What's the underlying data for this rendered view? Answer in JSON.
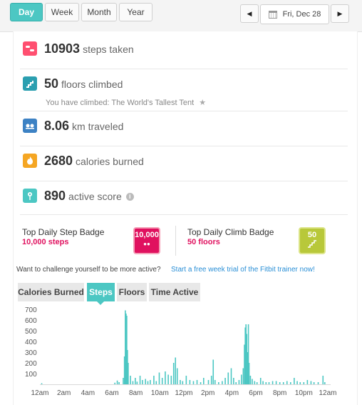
{
  "periods": {
    "day": "Day",
    "week": "Week",
    "month": "Month",
    "year": "Year"
  },
  "date_label": "Fri, Dec 28",
  "stats": {
    "steps": {
      "value": "10903",
      "unit": "steps taken"
    },
    "floors": {
      "value": "50",
      "unit": "floors climbed",
      "sub": "You have climbed: The World's Tallest Tent"
    },
    "distance": {
      "value": "8.06",
      "unit": "km traveled"
    },
    "calories": {
      "value": "2680",
      "unit": "calories burned"
    },
    "active": {
      "value": "890",
      "unit": "active score"
    }
  },
  "badges": {
    "step": {
      "title": "Top Daily Step Badge",
      "value": "10,000 steps",
      "badge_text": "10,000"
    },
    "climb": {
      "title": "Top Daily Climb Badge",
      "value": "50 floors",
      "badge_text": "50"
    }
  },
  "challenge": {
    "text": "Want to challenge yourself to be more active?",
    "link": "Start a free week trial of the Fitbit trainer now!"
  },
  "chart_tabs": {
    "calories": "Calories Burned",
    "steps": "Steps",
    "floors": "Floors",
    "time_active": "Time Active"
  },
  "colors": {
    "accent": "#4cc7c3",
    "steps_icon": "#ff4f70",
    "floors_icon": "#2b9fb0",
    "distance_icon": "#3d82c4",
    "calories_icon": "#f5a623",
    "active_icon": "#4cc7c3",
    "badge_pink": "#e0115f",
    "badge_green": "#b8c83a",
    "link": "#2a8fd6"
  },
  "chart_data": {
    "type": "bar",
    "title": "",
    "xlabel": "",
    "ylabel": "",
    "ylim": [
      0,
      700
    ],
    "yticks": [
      100,
      200,
      300,
      400,
      500,
      600,
      700
    ],
    "xticks": [
      "12am",
      "2am",
      "4am",
      "6am",
      "8am",
      "10am",
      "12pm",
      "2pm",
      "4pm",
      "6pm",
      "8pm",
      "10pm",
      "12am"
    ],
    "x_range_hours": [
      0,
      24
    ],
    "series": [
      {
        "values": [
          [
            0.15,
            10
          ],
          [
            6.25,
            15
          ],
          [
            6.45,
            35
          ],
          [
            6.6,
            20
          ],
          [
            6.95,
            60
          ],
          [
            7.05,
            260
          ],
          [
            7.12,
            690
          ],
          [
            7.18,
            660
          ],
          [
            7.24,
            640
          ],
          [
            7.3,
            320
          ],
          [
            7.36,
            200
          ],
          [
            7.55,
            80
          ],
          [
            7.75,
            30
          ],
          [
            7.95,
            60
          ],
          [
            8.1,
            25
          ],
          [
            8.35,
            80
          ],
          [
            8.55,
            40
          ],
          [
            8.8,
            50
          ],
          [
            9.0,
            30
          ],
          [
            9.2,
            40
          ],
          [
            9.5,
            80
          ],
          [
            9.7,
            30
          ],
          [
            9.95,
            110
          ],
          [
            10.2,
            60
          ],
          [
            10.45,
            120
          ],
          [
            10.7,
            90
          ],
          [
            10.95,
            80
          ],
          [
            11.15,
            200
          ],
          [
            11.3,
            250
          ],
          [
            11.45,
            150
          ],
          [
            11.7,
            40
          ],
          [
            11.9,
            30
          ],
          [
            12.2,
            80
          ],
          [
            12.5,
            40
          ],
          [
            12.8,
            30
          ],
          [
            13.1,
            40
          ],
          [
            13.4,
            20
          ],
          [
            13.65,
            60
          ],
          [
            14.05,
            40
          ],
          [
            14.3,
            80
          ],
          [
            14.45,
            230
          ],
          [
            14.6,
            40
          ],
          [
            14.9,
            20
          ],
          [
            15.2,
            30
          ],
          [
            15.45,
            60
          ],
          [
            15.7,
            110
          ],
          [
            15.95,
            150
          ],
          [
            16.15,
            60
          ],
          [
            16.35,
            20
          ],
          [
            16.6,
            40
          ],
          [
            16.8,
            90
          ],
          [
            16.95,
            150
          ],
          [
            17.05,
            370
          ],
          [
            17.12,
            530
          ],
          [
            17.18,
            560
          ],
          [
            17.24,
            470
          ],
          [
            17.3,
            300
          ],
          [
            17.38,
            560
          ],
          [
            17.44,
            200
          ],
          [
            17.55,
            80
          ],
          [
            17.7,
            50
          ],
          [
            17.9,
            30
          ],
          [
            18.1,
            20
          ],
          [
            18.4,
            60
          ],
          [
            18.6,
            30
          ],
          [
            18.85,
            20
          ],
          [
            19.1,
            20
          ],
          [
            19.4,
            30
          ],
          [
            19.7,
            30
          ],
          [
            20.0,
            20
          ],
          [
            20.3,
            20
          ],
          [
            20.6,
            30
          ],
          [
            20.9,
            20
          ],
          [
            21.2,
            60
          ],
          [
            21.45,
            30
          ],
          [
            21.7,
            20
          ],
          [
            22.0,
            20
          ],
          [
            22.3,
            40
          ],
          [
            22.6,
            30
          ],
          [
            22.85,
            20
          ],
          [
            23.2,
            20
          ],
          [
            23.6,
            80
          ],
          [
            23.75,
            20
          ]
        ]
      }
    ]
  }
}
